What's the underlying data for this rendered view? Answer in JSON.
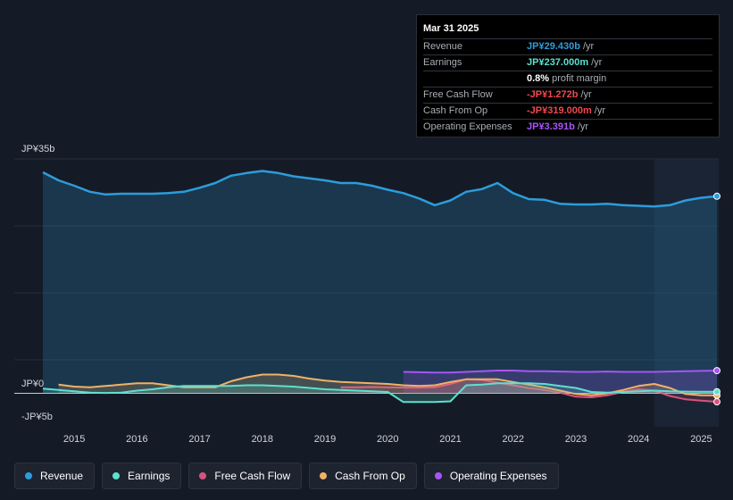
{
  "chart_data": {
    "type": "line",
    "x_ticks": [
      "2015",
      "2016",
      "2017",
      "2018",
      "2019",
      "2020",
      "2021",
      "2022",
      "2023",
      "2024",
      "2025"
    ],
    "y_labels": {
      "top": "JP¥35b",
      "zero": "JP¥0",
      "bottom": "-JP¥5b"
    },
    "ylim": [
      -5,
      35
    ],
    "unit": "JP¥ billions",
    "series": [
      {
        "name": "Revenue",
        "key": "revenue",
        "color": "#2d9cdb",
        "area": true,
        "points": [
          [
            2014.5,
            33
          ],
          [
            2014.75,
            31.8
          ],
          [
            2015,
            31
          ],
          [
            2015.25,
            30.1
          ],
          [
            2015.5,
            29.7
          ],
          [
            2015.75,
            29.8
          ],
          [
            2016,
            29.8
          ],
          [
            2016.25,
            29.8
          ],
          [
            2016.5,
            29.9
          ],
          [
            2016.75,
            30.1
          ],
          [
            2017,
            30.7
          ],
          [
            2017.25,
            31.4
          ],
          [
            2017.5,
            32.5
          ],
          [
            2017.75,
            32.9
          ],
          [
            2018,
            33.2
          ],
          [
            2018.25,
            32.9
          ],
          [
            2018.5,
            32.4
          ],
          [
            2018.75,
            32.1
          ],
          [
            2019,
            31.8
          ],
          [
            2019.25,
            31.4
          ],
          [
            2019.5,
            31.4
          ],
          [
            2019.75,
            31
          ],
          [
            2020,
            30.4
          ],
          [
            2020.25,
            29.9
          ],
          [
            2020.5,
            29.1
          ],
          [
            2020.75,
            28.1
          ],
          [
            2021,
            28.8
          ],
          [
            2021.25,
            30.1
          ],
          [
            2021.5,
            30.5
          ],
          [
            2021.75,
            31.4
          ],
          [
            2022,
            29.9
          ],
          [
            2022.25,
            29
          ],
          [
            2022.5,
            28.9
          ],
          [
            2022.75,
            28.3
          ],
          [
            2023,
            28.2
          ],
          [
            2023.25,
            28.2
          ],
          [
            2023.5,
            28.3
          ],
          [
            2023.75,
            28.1
          ],
          [
            2024,
            28
          ],
          [
            2024.25,
            27.9
          ],
          [
            2024.5,
            28.1
          ],
          [
            2024.75,
            28.8
          ],
          [
            2025,
            29.2
          ],
          [
            2025.25,
            29.43
          ]
        ]
      },
      {
        "name": "Operating Expenses",
        "key": "opex",
        "color": "#a855f7",
        "area": true,
        "points": [
          [
            2020.25,
            3.2
          ],
          [
            2020.5,
            3.15
          ],
          [
            2020.75,
            3.1
          ],
          [
            2021,
            3.1
          ],
          [
            2021.25,
            3.2
          ],
          [
            2021.5,
            3.3
          ],
          [
            2021.75,
            3.4
          ],
          [
            2022,
            3.4
          ],
          [
            2022.25,
            3.3
          ],
          [
            2022.5,
            3.3
          ],
          [
            2022.75,
            3.25
          ],
          [
            2023,
            3.2
          ],
          [
            2023.25,
            3.2
          ],
          [
            2023.5,
            3.25
          ],
          [
            2023.75,
            3.2
          ],
          [
            2024,
            3.2
          ],
          [
            2024.25,
            3.2
          ],
          [
            2024.5,
            3.25
          ],
          [
            2024.75,
            3.3
          ],
          [
            2025,
            3.35
          ],
          [
            2025.25,
            3.391
          ]
        ]
      },
      {
        "name": "Free Cash Flow",
        "key": "fcf",
        "color": "#d9527f",
        "area": true,
        "points": [
          [
            2019.25,
            0.9
          ],
          [
            2019.5,
            0.9
          ],
          [
            2019.75,
            0.95
          ],
          [
            2020,
            0.9
          ],
          [
            2020.25,
            0.85
          ],
          [
            2020.5,
            0.85
          ],
          [
            2020.75,
            0.9
          ],
          [
            2021,
            1.4
          ],
          [
            2021.25,
            2.1
          ],
          [
            2021.5,
            2
          ],
          [
            2021.75,
            1.6
          ],
          [
            2022,
            1.2
          ],
          [
            2022.25,
            0.8
          ],
          [
            2022.5,
            0.5
          ],
          [
            2022.75,
            0.1
          ],
          [
            2023,
            -0.5
          ],
          [
            2023.25,
            -0.6
          ],
          [
            2023.5,
            -0.3
          ],
          [
            2023.75,
            0.2
          ],
          [
            2024,
            0.6
          ],
          [
            2024.25,
            0.4
          ],
          [
            2024.5,
            -0.4
          ],
          [
            2024.75,
            -0.9
          ],
          [
            2025,
            -1.1
          ],
          [
            2025.25,
            -1.272
          ]
        ]
      },
      {
        "name": "Cash From Op",
        "key": "cfo",
        "color": "#f2b165",
        "area": true,
        "points": [
          [
            2014.75,
            1.3
          ],
          [
            2015,
            1
          ],
          [
            2015.25,
            0.9
          ],
          [
            2015.5,
            1.1
          ],
          [
            2015.75,
            1.3
          ],
          [
            2016,
            1.5
          ],
          [
            2016.25,
            1.5
          ],
          [
            2016.5,
            1.2
          ],
          [
            2016.75,
            0.9
          ],
          [
            2017,
            0.9
          ],
          [
            2017.25,
            0.9
          ],
          [
            2017.5,
            1.8
          ],
          [
            2017.75,
            2.4
          ],
          [
            2018,
            2.8
          ],
          [
            2018.25,
            2.8
          ],
          [
            2018.5,
            2.6
          ],
          [
            2018.75,
            2.2
          ],
          [
            2019,
            1.9
          ],
          [
            2019.25,
            1.7
          ],
          [
            2019.5,
            1.6
          ],
          [
            2019.75,
            1.5
          ],
          [
            2020,
            1.4
          ],
          [
            2020.25,
            1.2
          ],
          [
            2020.5,
            1.1
          ],
          [
            2020.75,
            1.2
          ],
          [
            2021,
            1.7
          ],
          [
            2021.25,
            2.1
          ],
          [
            2021.5,
            2.1
          ],
          [
            2021.75,
            2.1
          ],
          [
            2022,
            1.7
          ],
          [
            2022.25,
            1.3
          ],
          [
            2022.5,
            0.9
          ],
          [
            2022.75,
            0.4
          ],
          [
            2023,
            -0.1
          ],
          [
            2023.25,
            -0.3
          ],
          [
            2023.5,
            0
          ],
          [
            2023.75,
            0.5
          ],
          [
            2024,
            1.1
          ],
          [
            2024.25,
            1.4
          ],
          [
            2024.5,
            0.8
          ],
          [
            2024.75,
            -0.1
          ],
          [
            2025,
            -0.3
          ],
          [
            2025.25,
            -0.319
          ]
        ]
      },
      {
        "name": "Earnings",
        "key": "earnings",
        "color": "#5de0d0",
        "area": true,
        "points": [
          [
            2014.5,
            0.7
          ],
          [
            2014.75,
            0.5
          ],
          [
            2015,
            0.3
          ],
          [
            2015.25,
            0.1
          ],
          [
            2015.5,
            0.05
          ],
          [
            2015.75,
            0.1
          ],
          [
            2016,
            0.4
          ],
          [
            2016.25,
            0.6
          ],
          [
            2016.5,
            0.9
          ],
          [
            2016.75,
            1.1
          ],
          [
            2017,
            1.1
          ],
          [
            2017.25,
            1.1
          ],
          [
            2017.5,
            1.1
          ],
          [
            2017.75,
            1.2
          ],
          [
            2018,
            1.2
          ],
          [
            2018.25,
            1.1
          ],
          [
            2018.5,
            1
          ],
          [
            2018.75,
            0.8
          ],
          [
            2019,
            0.6
          ],
          [
            2019.25,
            0.5
          ],
          [
            2019.5,
            0.4
          ],
          [
            2019.75,
            0.3
          ],
          [
            2020,
            0.2
          ],
          [
            2020.25,
            -1.3
          ],
          [
            2020.5,
            -1.3
          ],
          [
            2020.75,
            -1.3
          ],
          [
            2021,
            -1.2
          ],
          [
            2021.25,
            1.2
          ],
          [
            2021.5,
            1.3
          ],
          [
            2021.75,
            1.5
          ],
          [
            2022,
            1.5
          ],
          [
            2022.25,
            1.5
          ],
          [
            2022.5,
            1.4
          ],
          [
            2022.75,
            1.1
          ],
          [
            2023,
            0.8
          ],
          [
            2023.25,
            0.2
          ],
          [
            2023.5,
            0.1
          ],
          [
            2023.75,
            0.2
          ],
          [
            2024,
            0.3
          ],
          [
            2024.25,
            0.4
          ],
          [
            2024.5,
            0.3
          ],
          [
            2024.75,
            0.25
          ],
          [
            2025,
            0.24
          ],
          [
            2025.25,
            0.237
          ]
        ]
      }
    ],
    "highlight_from": 2024.25,
    "tooltip": {
      "date": "Mar 31 2025",
      "rows": [
        {
          "label": "Revenue",
          "value": "JP¥29.430b",
          "unit": "/yr",
          "color": "#2d9cdb"
        },
        {
          "label": "Earnings",
          "value": "JP¥237.000m",
          "unit": "/yr",
          "color": "#5de0d0"
        },
        {
          "label": "",
          "value": "0.8%",
          "unit": "profit margin",
          "color": "#ffffff"
        },
        {
          "label": "Free Cash Flow",
          "value": "-JP¥1.272b",
          "unit": "/yr",
          "color": "#f0484f"
        },
        {
          "label": "Cash From Op",
          "value": "-JP¥319.000m",
          "unit": "/yr",
          "color": "#f0484f"
        },
        {
          "label": "Operating Expenses",
          "value": "JP¥3.391b",
          "unit": "/yr",
          "color": "#a855f7"
        }
      ]
    }
  },
  "legend": [
    {
      "label": "Revenue",
      "color": "#2d9cdb"
    },
    {
      "label": "Earnings",
      "color": "#5de0d0"
    },
    {
      "label": "Free Cash Flow",
      "color": "#d9527f"
    },
    {
      "label": "Cash From Op",
      "color": "#f2b165"
    },
    {
      "label": "Operating Expenses",
      "color": "#a855f7"
    }
  ]
}
